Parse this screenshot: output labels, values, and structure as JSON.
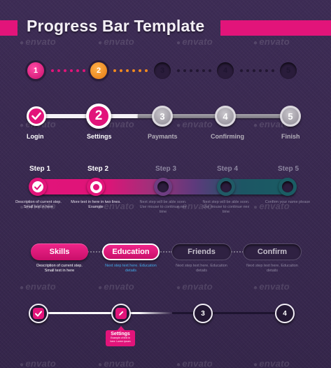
{
  "header": {
    "title": "Progress Bar Template"
  },
  "watermark": {
    "text": "envato"
  },
  "row1": {
    "steps": [
      "1",
      "2",
      "3",
      "4",
      "5"
    ]
  },
  "row2": {
    "labels": [
      "Login",
      "Settings",
      "Paymants",
      "Confirming",
      "Finish"
    ],
    "numbers": [
      "2",
      "3",
      "4",
      "5"
    ]
  },
  "row3": {
    "steps": [
      "Step 1",
      "Step 2",
      "Step 3",
      "Step 4",
      "Step 5"
    ],
    "descriptions": [
      "Description of current step. Small text in here",
      "More text in here in two lines. Example",
      "Next step will be able soon. Use mouse to continue nex time",
      "Next step will be able soon. Use mouse to continue nex time",
      "Confirm your name please"
    ]
  },
  "row4": {
    "pills": [
      "Skills",
      "Education",
      "Friends",
      "Confirm"
    ],
    "descriptions": [
      "Description of current step. Small text in here",
      "Next step text here. Education details",
      "Next step text here. Education details",
      "Next step text here. Education details"
    ]
  },
  "row5": {
    "numbers": [
      "3",
      "4"
    ],
    "tooltip_title": "Settings",
    "tooltip_text": "Example of text in here. Lorem ipsum"
  },
  "colors": {
    "accent": "#e2147a",
    "orange": "#f28a1e",
    "teal": "#1a5c64",
    "background": "#3a2a52"
  }
}
